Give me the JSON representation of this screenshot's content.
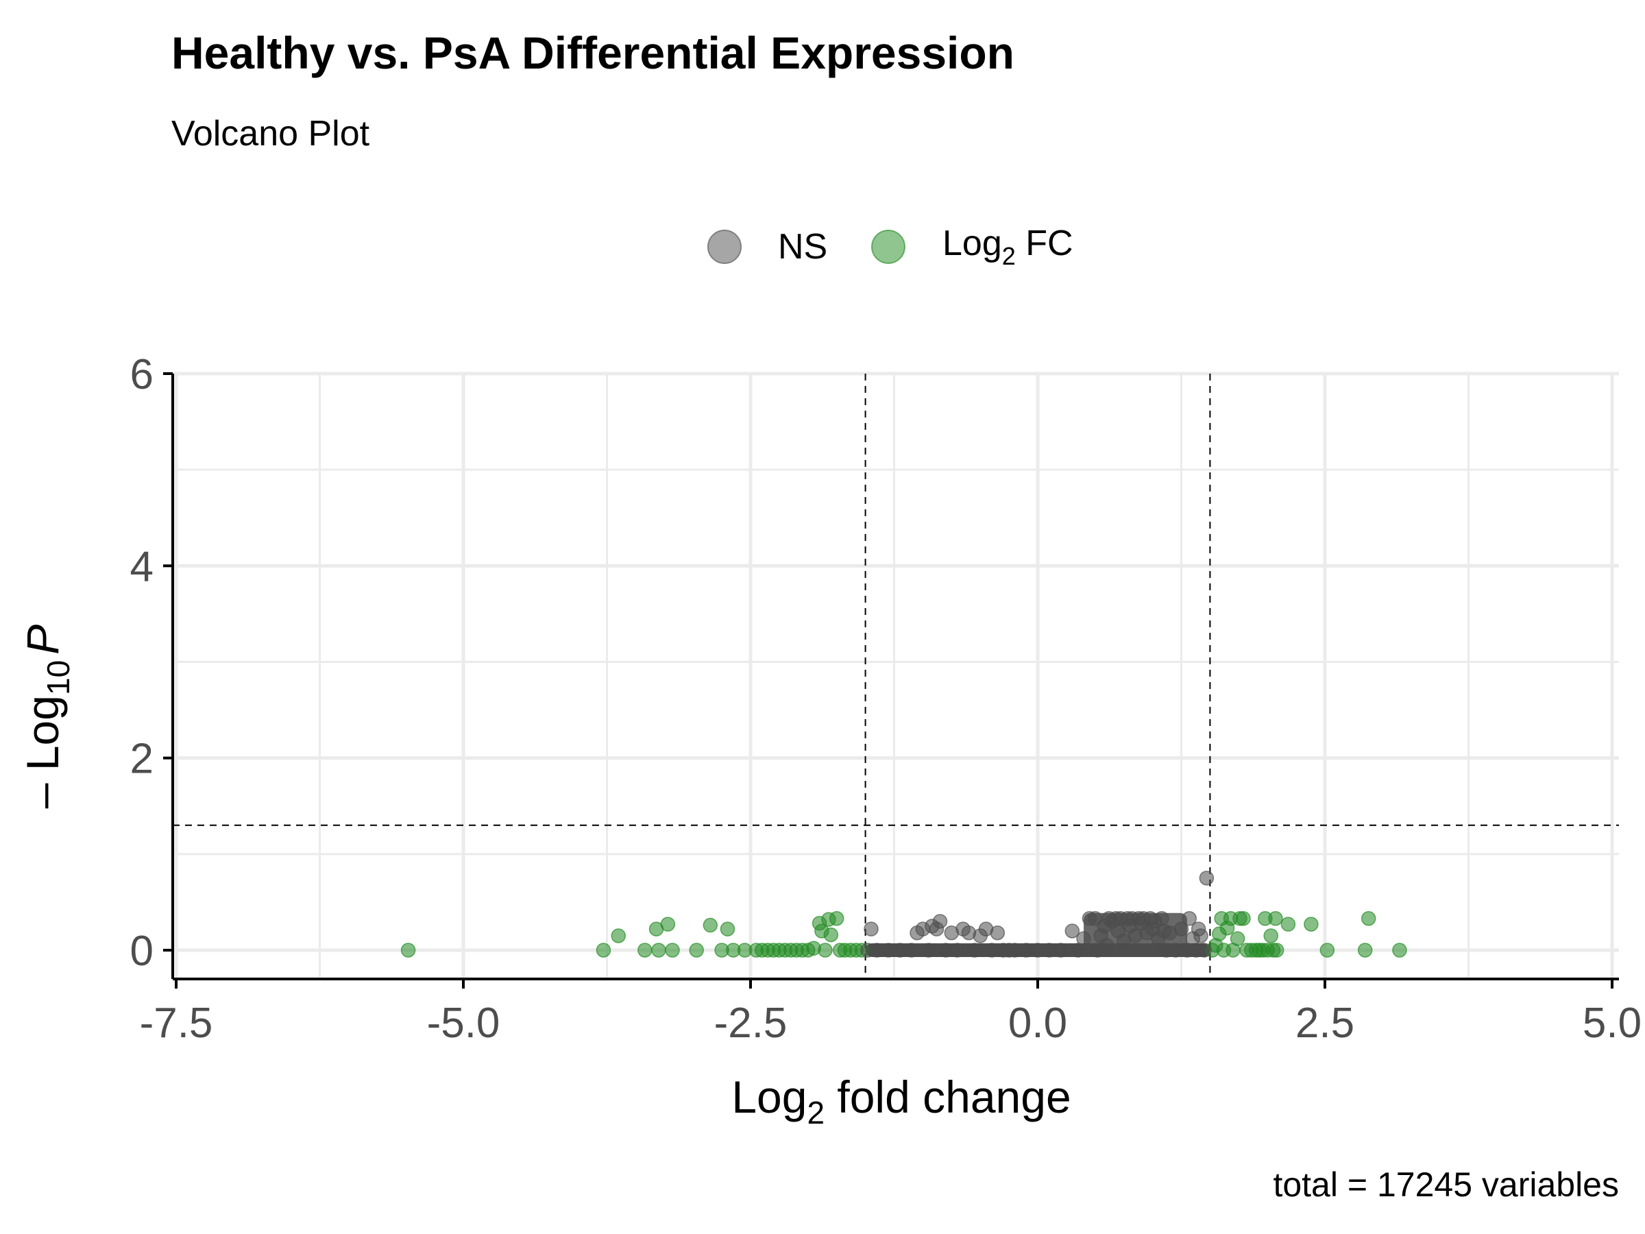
{
  "chart_data": {
    "type": "scatter",
    "title": "Healthy vs. PsA Differential Expression",
    "subtitle": "Volcano Plot",
    "caption": "total = 17245 variables",
    "xlabel": {
      "main": "Log",
      "sub": "2",
      "rest": " fold change"
    },
    "ylabel": {
      "prefix": "– Log",
      "sub": "10",
      "italic": "P"
    },
    "xlim": [
      -7.5,
      5.0
    ],
    "ylim": [
      0,
      6
    ],
    "x_ticks": [
      -7.5,
      -5.0,
      -2.5,
      0.0,
      2.5,
      5.0
    ],
    "x_tick_labels": [
      "-7.5",
      "-5.0",
      "-2.5",
      "0.0",
      "2.5",
      "5.0"
    ],
    "y_ticks": [
      0,
      2,
      4,
      6
    ],
    "y_tick_labels": [
      "0",
      "2",
      "4",
      "6"
    ],
    "grid": true,
    "legend_position": "top",
    "legend": [
      {
        "key": "ns",
        "label": "NS",
        "sub": "",
        "rest": "",
        "color": "#808080"
      },
      {
        "key": "fc",
        "label": "Log",
        "sub": "2",
        "rest": " FC",
        "color": "#228B22"
      }
    ],
    "cutoffs": {
      "log2fc": [
        -1.5,
        1.5
      ],
      "neg_log10_p": 1.3
    },
    "series": [
      {
        "name": "Log2 FC",
        "color": "#228B22",
        "points": [
          [
            -5.48,
            0.0
          ],
          [
            -3.78,
            0.0
          ],
          [
            -3.65,
            0.15
          ],
          [
            -3.42,
            0.0
          ],
          [
            -3.32,
            0.22
          ],
          [
            -3.3,
            0.0
          ],
          [
            -3.22,
            0.27
          ],
          [
            -3.18,
            0.0
          ],
          [
            -2.97,
            0.0
          ],
          [
            -2.85,
            0.26
          ],
          [
            -2.75,
            0.0
          ],
          [
            -2.7,
            0.22
          ],
          [
            -2.65,
            0.0
          ],
          [
            -2.55,
            0.0
          ],
          [
            -2.45,
            0.0
          ],
          [
            -2.4,
            0.0
          ],
          [
            -2.35,
            0.0
          ],
          [
            -2.3,
            0.0
          ],
          [
            -2.25,
            0.0
          ],
          [
            -2.2,
            0.0
          ],
          [
            -2.15,
            0.0
          ],
          [
            -2.1,
            0.0
          ],
          [
            -2.05,
            0.0
          ],
          [
            -2.0,
            0.0
          ],
          [
            -1.95,
            0.02
          ],
          [
            -1.9,
            0.28
          ],
          [
            -1.88,
            0.2
          ],
          [
            -1.85,
            0.0
          ],
          [
            -1.82,
            0.32
          ],
          [
            -1.8,
            0.16
          ],
          [
            -1.75,
            0.33
          ],
          [
            -1.72,
            0.0
          ],
          [
            -1.68,
            0.0
          ],
          [
            -1.63,
            0.0
          ],
          [
            -1.58,
            0.0
          ],
          [
            -1.53,
            0.0
          ],
          [
            1.52,
            0.0
          ],
          [
            1.55,
            0.05
          ],
          [
            1.58,
            0.17
          ],
          [
            1.6,
            0.33
          ],
          [
            1.62,
            0.0
          ],
          [
            1.65,
            0.23
          ],
          [
            1.68,
            0.33
          ],
          [
            1.7,
            0.0
          ],
          [
            1.74,
            0.12
          ],
          [
            1.76,
            0.33
          ],
          [
            1.79,
            0.33
          ],
          [
            1.82,
            0.0
          ],
          [
            1.86,
            0.0
          ],
          [
            1.9,
            0.0
          ],
          [
            1.93,
            0.0
          ],
          [
            1.96,
            0.0
          ],
          [
            1.98,
            0.33
          ],
          [
            2.0,
            0.0
          ],
          [
            2.03,
            0.15
          ],
          [
            2.05,
            0.0
          ],
          [
            2.07,
            0.33
          ],
          [
            2.08,
            0.0
          ],
          [
            2.18,
            0.27
          ],
          [
            2.38,
            0.27
          ],
          [
            2.52,
            0.0
          ],
          [
            2.85,
            0.0
          ],
          [
            2.88,
            0.33
          ],
          [
            3.15,
            0.0
          ]
        ]
      },
      {
        "name": "NS",
        "color": "#4d4d4d",
        "points": [
          [
            -1.48,
            0.0
          ],
          [
            -1.45,
            0.22
          ],
          [
            -1.4,
            0.0
          ],
          [
            -1.3,
            0.0
          ],
          [
            -1.2,
            0.0
          ],
          [
            -1.1,
            0.0
          ],
          [
            -1.05,
            0.18
          ],
          [
            -1.0,
            0.22
          ],
          [
            -0.95,
            0.0
          ],
          [
            -0.92,
            0.25
          ],
          [
            -0.88,
            0.22
          ],
          [
            -0.85,
            0.3
          ],
          [
            -0.8,
            0.0
          ],
          [
            -0.75,
            0.18
          ],
          [
            -0.7,
            0.0
          ],
          [
            -0.65,
            0.22
          ],
          [
            -0.6,
            0.18
          ],
          [
            -0.55,
            0.0
          ],
          [
            -0.5,
            0.15
          ],
          [
            -0.45,
            0.22
          ],
          [
            -0.4,
            0.0
          ],
          [
            -0.35,
            0.18
          ],
          [
            -0.3,
            0.0
          ],
          [
            -0.25,
            0.0
          ],
          [
            -0.2,
            0.0
          ],
          [
            -0.1,
            0.0
          ],
          [
            0.0,
            0.0
          ],
          [
            0.1,
            0.0
          ],
          [
            0.2,
            0.0
          ],
          [
            0.3,
            0.2
          ],
          [
            0.35,
            0.0
          ],
          [
            0.4,
            0.12
          ],
          [
            0.45,
            0.33
          ],
          [
            0.5,
            0.33
          ],
          [
            0.52,
            0.0
          ],
          [
            0.55,
            0.15
          ],
          [
            0.58,
            0.25
          ],
          [
            0.6,
            0.05
          ],
          [
            0.62,
            0.33
          ],
          [
            0.65,
            0.3
          ],
          [
            0.68,
            0.33
          ],
          [
            0.7,
            0.2
          ],
          [
            0.72,
            0.33
          ],
          [
            0.75,
            0.1
          ],
          [
            0.78,
            0.33
          ],
          [
            0.8,
            0.25
          ],
          [
            0.82,
            0.33
          ],
          [
            0.85,
            0.15
          ],
          [
            0.88,
            0.33
          ],
          [
            0.9,
            0.28
          ],
          [
            0.92,
            0.33
          ],
          [
            0.95,
            0.18
          ],
          [
            0.98,
            0.33
          ],
          [
            1.0,
            0.22
          ],
          [
            1.02,
            0.3
          ],
          [
            1.05,
            0.12
          ],
          [
            1.08,
            0.33
          ],
          [
            1.1,
            0.2
          ],
          [
            1.12,
            0.0
          ],
          [
            1.15,
            0.18
          ],
          [
            1.2,
            0.0
          ],
          [
            1.25,
            0.22
          ],
          [
            1.3,
            0.0
          ],
          [
            1.32,
            0.33
          ],
          [
            1.35,
            0.12
          ],
          [
            1.38,
            0.0
          ],
          [
            1.4,
            0.22
          ],
          [
            1.42,
            0.15
          ],
          [
            1.45,
            0.0
          ],
          [
            1.47,
            0.75
          ]
        ]
      }
    ]
  }
}
